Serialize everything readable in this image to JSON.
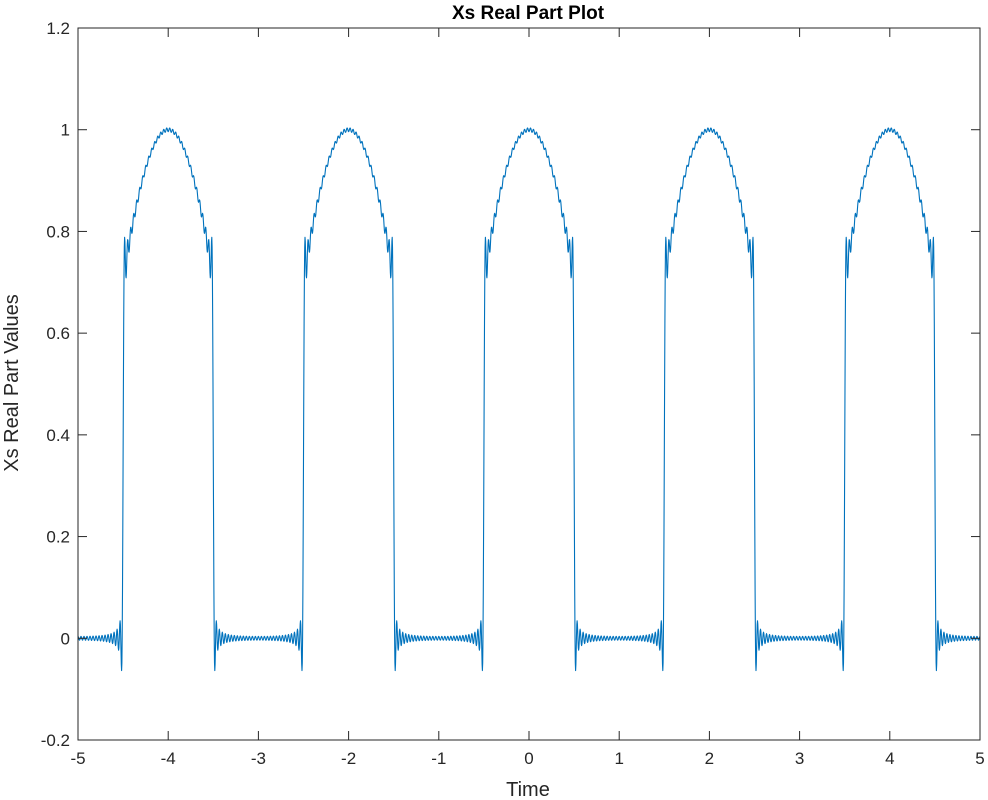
{
  "chart_data": {
    "type": "line",
    "title": "Xs Real Part Plot",
    "xlabel": "Time",
    "ylabel": "Xs Real Part Values",
    "xlim": [
      -5,
      5
    ],
    "ylim": [
      -0.2,
      1.2
    ],
    "x_ticks": [
      -5,
      -4,
      -3,
      -2,
      -1,
      0,
      1,
      2,
      3,
      4,
      5
    ],
    "x_tick_labels": [
      "-5",
      "-4",
      "-3",
      "-2",
      "-1",
      "0",
      "1",
      "2",
      "3",
      "4",
      "5"
    ],
    "y_ticks": [
      -0.2,
      0,
      0.2,
      0.4,
      0.6,
      0.8,
      1,
      1.2
    ],
    "y_tick_labels": [
      "-0.2",
      "0",
      "0.2",
      "0.4",
      "0.6",
      "0.8",
      "1",
      "1.2"
    ],
    "grid": false,
    "legend": "none",
    "series": [
      {
        "color": "#0072BD",
        "description": "Truncated Fourier series of a periodic raised cosine: pulse cos(pi*(t-c)/2) centered at c = -4,-2,0,2,4, nonzero for |t-c|<0.5, zero otherwise, with Gibbs ringing at each edge",
        "period": 2,
        "pulse_centers": [
          -4,
          -2,
          0,
          2,
          4
        ],
        "pulse_half_width": 0.5,
        "peak_value": 1.0,
        "edge_value": 0.6,
        "x": [
          -5,
          -4.6,
          -4.52,
          -4.5,
          -4.48,
          -4.45,
          -4.4,
          -4.3,
          -4.2,
          -4.1,
          -4.0,
          -3.9,
          -3.8,
          -3.7,
          -3.6,
          -3.55,
          -3.52,
          -3.5,
          -3.48,
          -3.4,
          -3.0,
          -2.6,
          -2.52,
          -2.5,
          -2.48,
          -2.45,
          -2.4,
          -2.3,
          -2.2,
          -2.1,
          -2.0,
          -1.9,
          -1.8,
          -1.7,
          -1.6,
          -1.55,
          -1.52,
          -1.5,
          -1.48,
          -1.4,
          -1.0,
          -0.6,
          -0.52,
          -0.5,
          -0.48,
          -0.45,
          -0.4,
          -0.3,
          -0.2,
          -0.1,
          0.0,
          0.1,
          0.2,
          0.3,
          0.4,
          0.45,
          0.48,
          0.5,
          0.52,
          0.6,
          1.0,
          1.4,
          1.48,
          1.5,
          1.52,
          1.55,
          1.6,
          1.7,
          1.8,
          1.9,
          2.0,
          2.1,
          2.2,
          2.3,
          2.4,
          2.45,
          2.48,
          2.5,
          2.52,
          2.6,
          3.0,
          3.4,
          3.48,
          3.5,
          3.52,
          3.55,
          3.6,
          3.7,
          3.8,
          3.9,
          4.0,
          4.1,
          4.2,
          4.3,
          4.4,
          4.45,
          4.48,
          4.5,
          4.52,
          4.6,
          5.0
        ],
        "y": [
          0.0,
          0.0,
          0.02,
          -0.04,
          0.58,
          0.62,
          0.63,
          0.81,
          0.95,
          0.99,
          1.0,
          0.99,
          0.95,
          0.81,
          0.63,
          0.62,
          0.58,
          -0.04,
          0.02,
          0.0,
          0.0,
          0.0,
          0.02,
          -0.04,
          0.58,
          0.62,
          0.63,
          0.81,
          0.95,
          0.99,
          1.0,
          0.99,
          0.95,
          0.81,
          0.63,
          0.62,
          0.58,
          -0.04,
          0.02,
          0.0,
          0.0,
          0.0,
          0.02,
          -0.04,
          0.58,
          0.62,
          0.63,
          0.81,
          0.95,
          0.99,
          1.0,
          0.99,
          0.95,
          0.81,
          0.63,
          0.62,
          0.58,
          -0.04,
          0.02,
          0.0,
          0.0,
          0.0,
          0.02,
          -0.04,
          0.58,
          0.62,
          0.63,
          0.81,
          0.95,
          0.99,
          1.0,
          0.99,
          0.95,
          0.81,
          0.63,
          0.62,
          0.58,
          -0.04,
          0.02,
          0.0,
          0.0,
          0.0,
          0.02,
          -0.04,
          0.58,
          0.62,
          0.63,
          0.81,
          0.95,
          0.99,
          1.0,
          0.99,
          0.95,
          0.81,
          0.63,
          0.62,
          0.58,
          -0.04,
          0.02,
          0.0,
          0.0
        ]
      }
    ]
  }
}
